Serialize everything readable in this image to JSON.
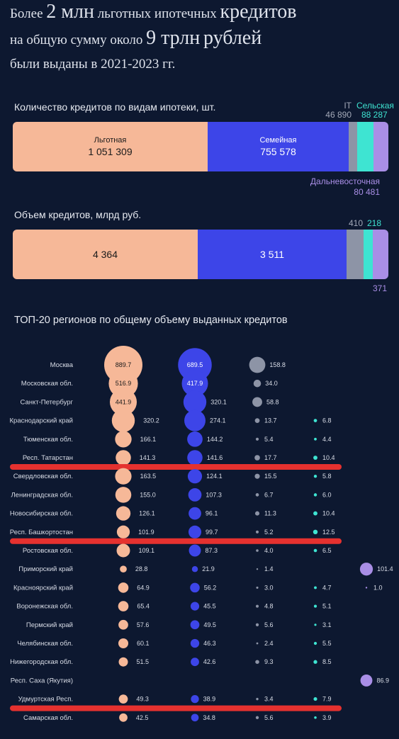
{
  "headline": {
    "l1a": "Более",
    "l1b": "2 млн",
    "l1c": "льготных ипотечных",
    "l1d": "кредитов",
    "l2a": "на общую сумму около",
    "l2b": "9 трлн",
    "l2c": "рублей",
    "l3": "были выданы в 2021-2023 гг."
  },
  "count_section": {
    "title": "Количество кредитов по видам ипотеки, шт.",
    "lgot_name": "Льготная",
    "lgot_value": "1 051 309",
    "family_name": "Семейная",
    "family_value": "755 578",
    "it_name": "IT",
    "it_value": "46 890",
    "rural_name": "Сельская",
    "rural_value": "88 287",
    "fe_name": "Дальневосточная",
    "fe_value": "80 481"
  },
  "volume_section": {
    "title": "Объем кредитов, млрд руб.",
    "lgot_value": "4 364",
    "family_value": "3 511",
    "it_value": "410",
    "rural_value": "218",
    "fe_value": "371"
  },
  "top_section": {
    "title": "ТОП-20 регионов по общему объему выданных кредитов"
  },
  "colors": {
    "lgot": "#f6b898",
    "family": "#3d45e8",
    "it": "#8d94a6",
    "rural": "#3ee4d2",
    "fe": "#a98ee6",
    "highlight": "#e5312f"
  },
  "chart_data": [
    {
      "type": "bar",
      "title": "Количество кредитов по видам ипотеки, шт.",
      "categories": [
        "Льготная",
        "Семейная",
        "IT",
        "Сельская",
        "Дальневосточная"
      ],
      "values": [
        1051309,
        755578,
        46890,
        88287,
        80481
      ],
      "stacked": true
    },
    {
      "type": "bar",
      "title": "Объем кредитов, млрд руб.",
      "categories": [
        "Льготная",
        "Семейная",
        "IT",
        "Сельская",
        "Дальневосточная"
      ],
      "values": [
        4364,
        3511,
        410,
        218,
        371
      ],
      "stacked": true
    },
    {
      "type": "scatter",
      "title": "ТОП-20 регионов по общему объему выданных кредитов",
      "series_keys": [
        "lgot",
        "family",
        "it",
        "rural",
        "fe"
      ],
      "rows": [
        {
          "region": "Москва",
          "values": [
            889.7,
            689.5,
            158.8,
            null,
            null
          ]
        },
        {
          "region": "Московская обл.",
          "values": [
            516.9,
            417.9,
            34.0,
            null,
            null
          ]
        },
        {
          "region": "Санкт-Петербург",
          "values": [
            441.9,
            320.1,
            58.8,
            null,
            null
          ]
        },
        {
          "region": "Краснодарский край",
          "values": [
            320.2,
            274.1,
            13.7,
            6.8,
            null
          ]
        },
        {
          "region": "Тюменская обл.",
          "values": [
            166.1,
            144.2,
            5.4,
            4.4,
            null
          ]
        },
        {
          "region": "Респ. Татарстан",
          "values": [
            141.3,
            141.6,
            17.7,
            10.4,
            null
          ],
          "highlight": true
        },
        {
          "region": "Свердловская обл.",
          "values": [
            163.5,
            124.1,
            15.5,
            5.8,
            null
          ]
        },
        {
          "region": "Ленинградская обл.",
          "values": [
            155.0,
            107.3,
            6.7,
            6.0,
            null
          ]
        },
        {
          "region": "Новосибирская обл.",
          "values": [
            126.1,
            96.1,
            11.3,
            10.4,
            null
          ]
        },
        {
          "region": "Респ. Башкортостан",
          "values": [
            101.9,
            99.7,
            5.2,
            12.5,
            null
          ],
          "highlight": true
        },
        {
          "region": "Ростовская обл.",
          "values": [
            109.1,
            87.3,
            4.0,
            6.5,
            null
          ]
        },
        {
          "region": "Приморский край",
          "values": [
            28.8,
            21.9,
            1.4,
            null,
            101.4
          ]
        },
        {
          "region": "Красноярский край",
          "values": [
            64.9,
            56.2,
            3.0,
            4.7,
            1.0
          ]
        },
        {
          "region": "Воронежская обл.",
          "values": [
            65.4,
            45.5,
            4.8,
            5.1,
            null
          ]
        },
        {
          "region": "Пермский край",
          "values": [
            57.6,
            49.5,
            5.6,
            3.1,
            null
          ]
        },
        {
          "region": "Челябинская обл.",
          "values": [
            60.1,
            46.3,
            2.4,
            5.5,
            null
          ]
        },
        {
          "region": "Нижегородская обл.",
          "values": [
            51.5,
            42.6,
            9.3,
            8.5,
            null
          ]
        },
        {
          "region": "Респ. Саха (Якутия)",
          "values": [
            null,
            null,
            null,
            null,
            86.9
          ]
        },
        {
          "region": "Удмуртская Респ.",
          "values": [
            49.3,
            38.9,
            3.4,
            7.9,
            null
          ],
          "highlight": true
        },
        {
          "region": "Самарская обл.",
          "values": [
            42.5,
            34.8,
            5.6,
            3.9,
            null
          ]
        }
      ]
    }
  ]
}
